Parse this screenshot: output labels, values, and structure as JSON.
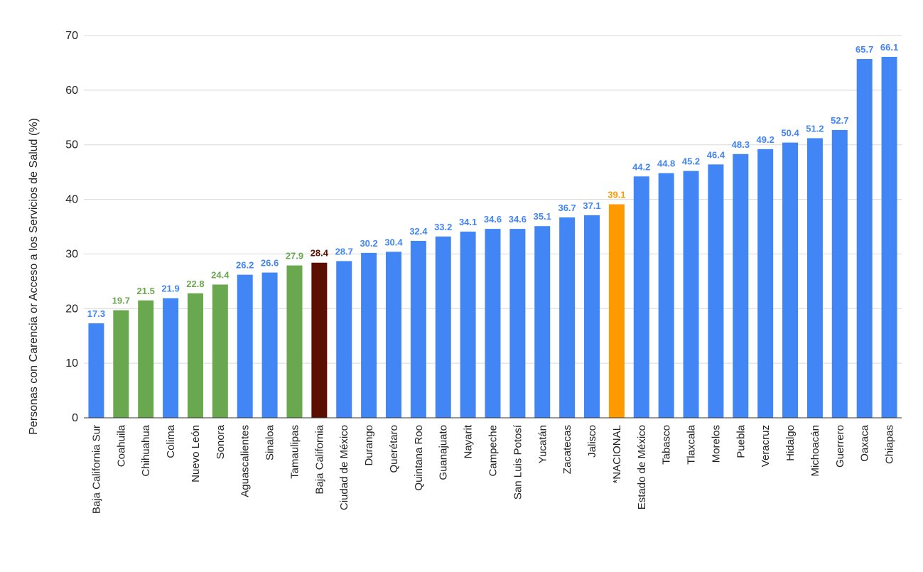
{
  "chart_data": {
    "type": "bar",
    "title": "",
    "xlabel": "",
    "ylabel": "Personas con Carencia or Acceso a los Servicios de Salud (%)",
    "ylim": [
      0,
      70
    ],
    "yticks": [
      0,
      10,
      20,
      30,
      40,
      50,
      60,
      70
    ],
    "grid": true,
    "categories": [
      "Baja California Sur",
      "Coahuila",
      "Chihuahua",
      "Colima",
      "Nuevo León",
      "Sonora",
      "Aguascalientes",
      "Sinaloa",
      "Tamaulipas",
      "Baja California",
      "Ciudad de México",
      "Durango",
      "Querétaro",
      "Quintana Roo",
      "Guanajuato",
      "Nayarit",
      "Campeche",
      "San Luis Potosí",
      "Yucatán",
      "Zacatecas",
      "Jalisco",
      "*NACIONAL",
      "Estado de México",
      "Tabasco",
      "Tlaxcala",
      "Morelos",
      "Puebla",
      "Veracruz",
      "Hidalgo",
      "Michoacán",
      "Guerrero",
      "Oaxaca",
      "Chiapas"
    ],
    "values": [
      17.3,
      19.7,
      21.5,
      21.9,
      22.8,
      24.4,
      26.2,
      26.6,
      27.9,
      28.4,
      28.7,
      30.2,
      30.4,
      32.4,
      33.2,
      34.1,
      34.6,
      34.6,
      35.1,
      36.7,
      37.1,
      39.1,
      44.2,
      44.8,
      45.2,
      46.4,
      48.3,
      49.2,
      50.4,
      51.2,
      52.7,
      65.7,
      66.1
    ],
    "value_labels": [
      "17.3",
      "19.7",
      "21.5",
      "21.9",
      "22.8",
      "24.4",
      "26.2",
      "26.6",
      "27.9",
      "28.4",
      "28.7",
      "30.2",
      "30.4",
      "32.4",
      "33.2",
      "34.1",
      "34.6",
      "34.6",
      "35.1",
      "36.7",
      "37.1",
      "39.1",
      "44.2",
      "44.8",
      "45.2",
      "46.4",
      "48.3",
      "49.2",
      "50.4",
      "51.2",
      "52.7",
      "65.7",
      "66.1"
    ],
    "bar_colors": [
      "#4285f4",
      "#6aa84f",
      "#6aa84f",
      "#4285f4",
      "#6aa84f",
      "#6aa84f",
      "#4285f4",
      "#4285f4",
      "#6aa84f",
      "#5b0f00",
      "#4285f4",
      "#4285f4",
      "#4285f4",
      "#4285f4",
      "#4285f4",
      "#4285f4",
      "#4285f4",
      "#4285f4",
      "#4285f4",
      "#4285f4",
      "#4285f4",
      "#ff9900",
      "#4285f4",
      "#4285f4",
      "#4285f4",
      "#4285f4",
      "#4285f4",
      "#4285f4",
      "#4285f4",
      "#4285f4",
      "#4285f4",
      "#4285f4",
      "#4285f4"
    ]
  }
}
